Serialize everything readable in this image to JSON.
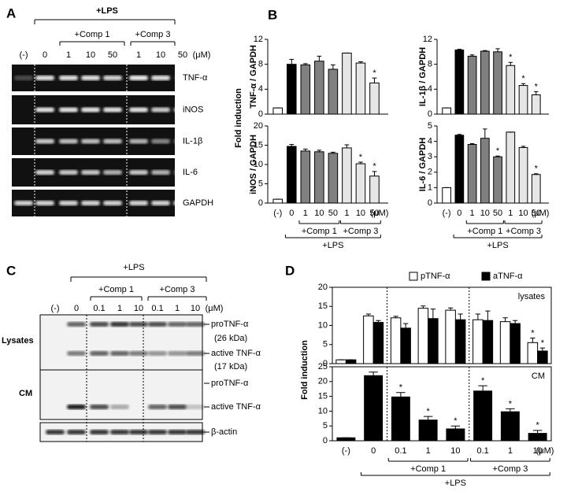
{
  "panel_a": {
    "label": "A",
    "treatment": "+LPS",
    "groups": [
      "+Comp 1",
      "+Comp 3"
    ],
    "lanes": [
      "(-)",
      "0",
      "1",
      "10",
      "50",
      "1",
      "10",
      "50"
    ],
    "unit": "(μM)",
    "genes": [
      "TNF-α",
      "iNOS",
      "IL-1β",
      "IL-6",
      "GAPDH"
    ]
  },
  "panel_b": {
    "label": "B",
    "y_label": "Fold induction",
    "unit": "(μM)",
    "groups": [
      "+Comp 1",
      "+Comp 3"
    ],
    "treatment": "+LPS"
  },
  "panel_c": {
    "label": "C",
    "treatment": "+LPS",
    "groups": [
      "+Comp 1",
      "+Comp 3"
    ],
    "lanes": [
      "(-)",
      "0",
      "0.1",
      "1",
      "10",
      "0.1",
      "1",
      "10"
    ],
    "unit": "(μM)",
    "row_labels": [
      "Lysates",
      "CM"
    ],
    "band_labels": [
      "proTNF-α",
      "(26 kDa)",
      "active TNF-α",
      "(17 kDa)",
      "proTNF-α",
      "active TNF-α",
      "β-actin"
    ]
  },
  "panel_d": {
    "label": "D",
    "y_label": "Fold induction",
    "unit": "(μM)",
    "groups": [
      "+Comp 1",
      "+Comp 3"
    ],
    "treatment": "+LPS"
  },
  "chart_data": [
    {
      "type": "bar",
      "y_label": "TNF-α / GAPDH",
      "categories": [
        null,
        null,
        null,
        null,
        null,
        null,
        null,
        null
      ],
      "ylim": [
        0,
        12
      ],
      "yticks": [
        0,
        4,
        8,
        12
      ],
      "series": [
        {
          "colors": [
            "#ffffff",
            "#000000",
            "#808080",
            "#808080",
            "#808080",
            "#e6e6e6",
            "#e6e6e6",
            "#e6e6e6"
          ],
          "values": [
            1,
            8,
            7.9,
            8.5,
            7.2,
            9.8,
            8.2,
            5
          ],
          "errors": [
            0,
            0.8,
            0.2,
            0.8,
            0.7,
            0,
            0.2,
            0.8
          ],
          "significance": [
            null,
            null,
            null,
            null,
            null,
            null,
            null,
            "*"
          ]
        }
      ]
    },
    {
      "type": "bar",
      "y_label": "IL-1β / GAPDH",
      "categories": [
        null,
        null,
        null,
        null,
        null,
        null,
        null,
        null
      ],
      "ylim": [
        0,
        12
      ],
      "yticks": [
        0,
        4,
        8,
        12
      ],
      "series": [
        {
          "colors": [
            "#ffffff",
            "#000000",
            "#808080",
            "#808080",
            "#808080",
            "#e6e6e6",
            "#e6e6e6",
            "#e6e6e6"
          ],
          "values": [
            1,
            10.3,
            9.3,
            10.1,
            10,
            7.8,
            4.6,
            3.1
          ],
          "errors": [
            0,
            0.1,
            0.2,
            0.1,
            0.5,
            0.5,
            0.3,
            0.5
          ],
          "significance": [
            null,
            null,
            null,
            null,
            null,
            "*",
            "*",
            "*"
          ]
        }
      ]
    },
    {
      "type": "bar",
      "y_label": "iNOS / GAPDH",
      "categories": [
        "(-)",
        "0",
        "1",
        "10",
        "50",
        "1",
        "10",
        "50"
      ],
      "ylim": [
        0,
        20
      ],
      "yticks": [
        0,
        5,
        10,
        15,
        20
      ],
      "series": [
        {
          "colors": [
            "#ffffff",
            "#000000",
            "#808080",
            "#808080",
            "#808080",
            "#e6e6e6",
            "#e6e6e6",
            "#e6e6e6"
          ],
          "values": [
            1,
            14.7,
            13.5,
            13.3,
            12.9,
            14.3,
            10.2,
            7
          ],
          "errors": [
            0,
            0.5,
            0.5,
            0.4,
            0.3,
            0.8,
            0.4,
            1.2
          ],
          "significance": [
            null,
            null,
            null,
            null,
            null,
            null,
            "*",
            "*"
          ]
        }
      ]
    },
    {
      "type": "bar",
      "y_label": "IL-6 / GAPDH",
      "categories": [
        "(-)",
        "0",
        "1",
        "10",
        "50",
        "1",
        "10",
        "50"
      ],
      "ylim": [
        0,
        5
      ],
      "yticks": [
        0,
        1,
        2,
        3,
        4,
        5
      ],
      "series": [
        {
          "colors": [
            "#ffffff",
            "#000000",
            "#808080",
            "#808080",
            "#808080",
            "#e6e6e6",
            "#e6e6e6",
            "#e6e6e6"
          ],
          "values": [
            1,
            4.4,
            3.8,
            4.2,
            3,
            4.6,
            3.6,
            1.85
          ],
          "errors": [
            0,
            0.05,
            0.05,
            0.6,
            0.05,
            0,
            0.08,
            0.05
          ],
          "significance": [
            null,
            null,
            null,
            null,
            "*",
            null,
            null,
            "*"
          ]
        }
      ]
    },
    {
      "type": "bar",
      "annotation": "lysates",
      "frame": true,
      "dividers": true,
      "categories": [
        null,
        null,
        null,
        null,
        null,
        null,
        null,
        null
      ],
      "ylim": [
        0,
        20
      ],
      "yticks": [
        0,
        5,
        10,
        15,
        20
      ],
      "series": [
        {
          "name": "pTNF-α",
          "color": "#ffffff",
          "values": [
            1,
            12.5,
            12,
            14.5,
            14,
            11.5,
            11,
            5.5
          ],
          "errors": [
            0,
            0.5,
            0.4,
            0.6,
            0.6,
            1.5,
            1,
            1.2
          ],
          "significance": [
            null,
            null,
            null,
            null,
            null,
            null,
            null,
            "*"
          ]
        },
        {
          "name": "aTNF-α",
          "color": "#000000",
          "values": [
            1,
            10.8,
            9.3,
            11.8,
            11.5,
            11.3,
            10.5,
            3.3
          ],
          "errors": [
            0,
            0.5,
            1.2,
            2.5,
            1.5,
            2.5,
            0.8,
            0.8
          ],
          "significance": [
            null,
            null,
            null,
            null,
            null,
            null,
            null,
            "*"
          ]
        }
      ]
    },
    {
      "type": "bar",
      "annotation": "CM",
      "frame": true,
      "dividers": true,
      "categories": [
        "(-)",
        "0",
        "0.1",
        "1",
        "10",
        "0.1",
        "1",
        "10"
      ],
      "ylim": [
        0,
        25
      ],
      "yticks": [
        0,
        5,
        10,
        15,
        20,
        25
      ],
      "series": [
        {
          "color": "#000000",
          "values": [
            1,
            22,
            14.8,
            7,
            4,
            16.8,
            9.8,
            2.5
          ],
          "errors": [
            0,
            1.2,
            1.5,
            1.2,
            1,
            1.8,
            1,
            1
          ],
          "significance": [
            null,
            null,
            "*",
            "*",
            "*",
            "*",
            "*",
            "*"
          ]
        }
      ]
    }
  ]
}
